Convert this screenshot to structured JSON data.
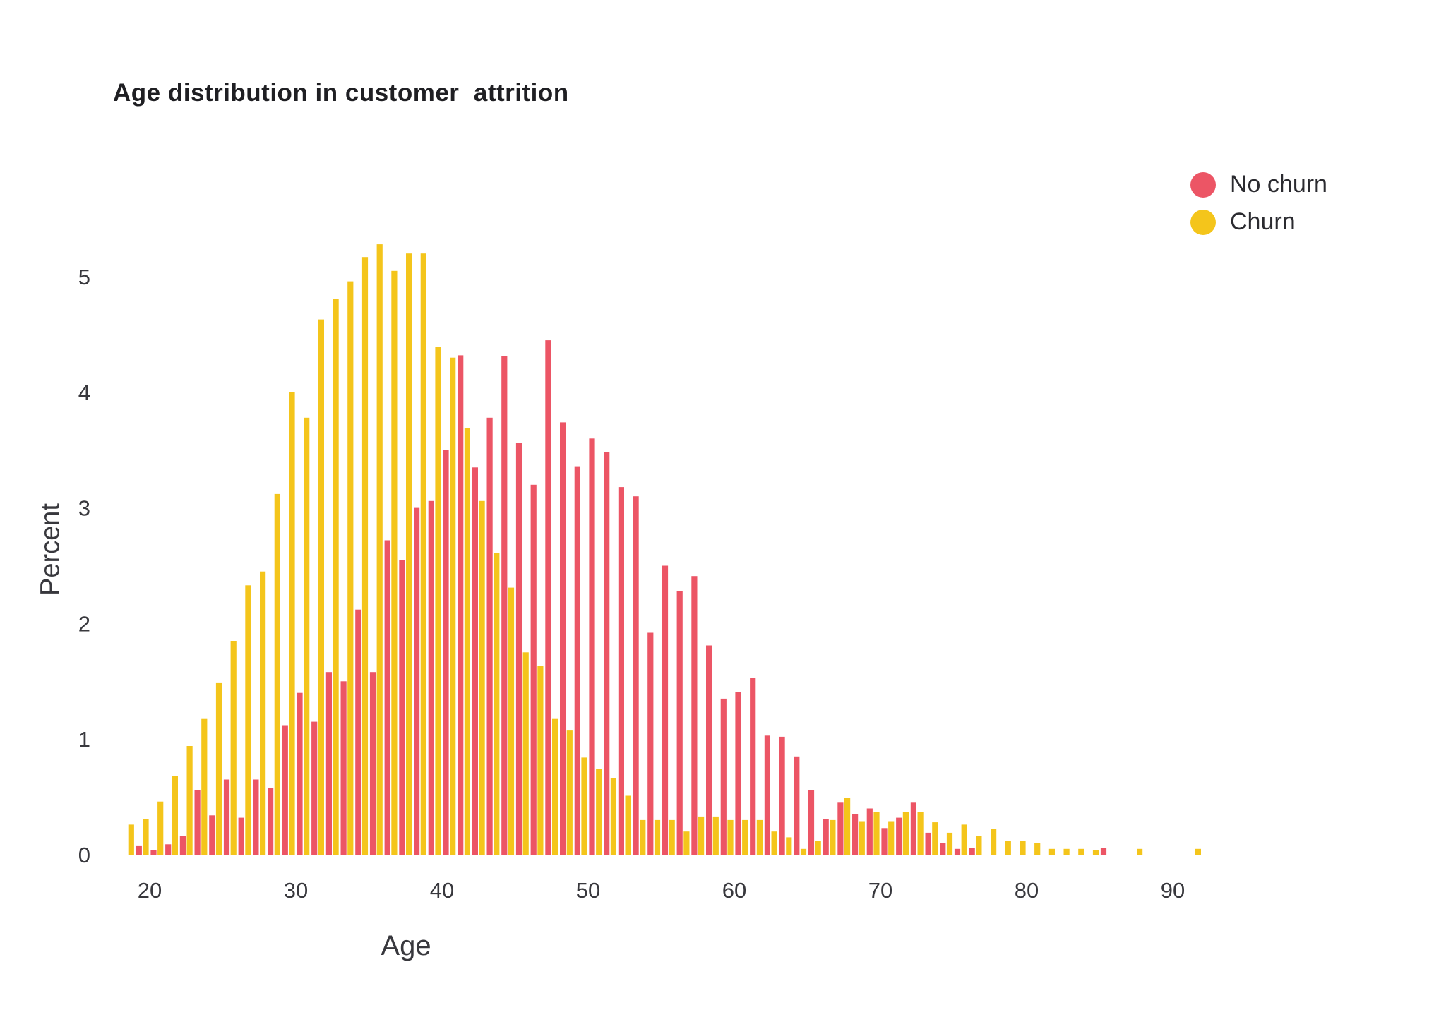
{
  "title": "Age distribution in customer  attrition",
  "legend": [
    {
      "label": "No churn",
      "color": "#EC5565"
    },
    {
      "label": "Churn",
      "color": "#F4C51B"
    }
  ],
  "axes": {
    "x_label": "Age",
    "y_label": "Percent",
    "x_tick_labels": [
      "20",
      "30",
      "40",
      "50",
      "60",
      "70",
      "80",
      "90"
    ],
    "y_tick_labels": [
      "0",
      "1",
      "2",
      "3",
      "4",
      "5"
    ]
  },
  "colors": {
    "no_churn": "#EC5565",
    "churn": "#F4C51B",
    "title_text": "#1f1f23",
    "tick_text": "#38383d",
    "background": "#ffffff"
  },
  "chart_data": {
    "type": "bar",
    "subtype": "grouped-histogram",
    "title": "Age distribution in customer  attrition",
    "xlabel": "Age",
    "ylabel": "Percent",
    "x": [
      19,
      20,
      21,
      22,
      23,
      24,
      25,
      26,
      27,
      28,
      29,
      30,
      31,
      32,
      33,
      34,
      35,
      36,
      37,
      38,
      39,
      40,
      41,
      42,
      43,
      44,
      45,
      46,
      47,
      48,
      49,
      50,
      51,
      52,
      53,
      54,
      55,
      56,
      57,
      58,
      59,
      60,
      61,
      62,
      63,
      64,
      65,
      66,
      67,
      68,
      69,
      70,
      71,
      72,
      73,
      74,
      75,
      76,
      77,
      78,
      79,
      80,
      81,
      82,
      83,
      84,
      85,
      86,
      87,
      88,
      89,
      90,
      91,
      92,
      93
    ],
    "x_ticks": [
      20,
      30,
      40,
      50,
      60,
      70,
      80,
      90
    ],
    "y_ticks": [
      0,
      1,
      2,
      3,
      4,
      5
    ],
    "xlim": [
      18,
      94
    ],
    "ylim": [
      0,
      5.5
    ],
    "grid": false,
    "legend_position": "top-right",
    "series": [
      {
        "name": "No churn",
        "color": "#EC5565",
        "values": [
          0.08,
          0.04,
          0.09,
          0.16,
          0.56,
          0.34,
          0.65,
          0.32,
          0.65,
          0.58,
          1.12,
          1.4,
          1.15,
          1.58,
          1.5,
          2.12,
          1.58,
          2.72,
          2.55,
          3.0,
          3.06,
          3.5,
          4.32,
          3.35,
          3.78,
          4.31,
          3.56,
          3.2,
          4.45,
          3.74,
          3.36,
          3.6,
          3.48,
          3.18,
          3.1,
          1.92,
          2.5,
          2.28,
          2.41,
          1.81,
          1.35,
          1.41,
          1.53,
          1.03,
          1.02,
          0.85,
          0.56,
          0.31,
          0.45,
          0.35,
          0.4,
          0.23,
          0.32,
          0.45,
          0.19,
          0.1,
          0.05,
          0.06,
          0,
          0,
          0,
          0,
          0,
          0,
          0,
          0,
          0.06,
          0,
          0,
          0,
          0,
          0,
          0,
          0,
          0
        ]
      },
      {
        "name": "Churn",
        "color": "#F4C51B",
        "values": [
          0.26,
          0.31,
          0.46,
          0.68,
          0.94,
          1.18,
          1.49,
          1.85,
          2.33,
          2.45,
          3.12,
          4.0,
          3.78,
          4.63,
          4.81,
          4.96,
          5.17,
          5.28,
          5.05,
          5.2,
          5.2,
          4.39,
          4.3,
          3.69,
          3.06,
          2.61,
          2.31,
          1.75,
          1.63,
          1.18,
          1.08,
          0.84,
          0.74,
          0.66,
          0.51,
          0.3,
          0.3,
          0.3,
          0.2,
          0.33,
          0.33,
          0.3,
          0.3,
          0.3,
          0.2,
          0.15,
          0.05,
          0.12,
          0.3,
          0.49,
          0.29,
          0.37,
          0.29,
          0.37,
          0.37,
          0.28,
          0.19,
          0.26,
          0.16,
          0.22,
          0.12,
          0.12,
          0.1,
          0.05,
          0.05,
          0.05,
          0.04,
          0,
          0,
          0.05,
          0,
          0,
          0,
          0.05,
          0
        ]
      }
    ]
  }
}
